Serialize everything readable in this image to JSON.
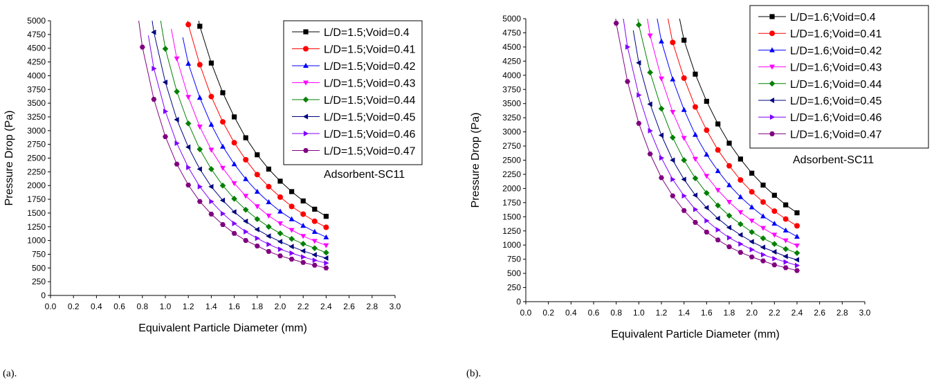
{
  "captions": {
    "a": "(a).",
    "b": "(b)."
  },
  "chart_data": [
    {
      "type": "line",
      "panel": "a",
      "xlabel": "Equivalent Particle Diameter (mm)",
      "ylabel": "Pressure Drop (Pa)",
      "annotation": "Adsorbent-SC11",
      "xlim": [
        0.0,
        3.0
      ],
      "ylim": [
        0,
        5000
      ],
      "xticks": [
        "0.0",
        "0.2",
        "0.4",
        "0.6",
        "0.8",
        "1.0",
        "1.2",
        "1.4",
        "1.6",
        "1.8",
        "2.0",
        "2.2",
        "2.4",
        "2.6",
        "2.8",
        "3.0"
      ],
      "yticks": [
        "0",
        "250",
        "500",
        "750",
        "1000",
        "1250",
        "1500",
        "1750",
        "2000",
        "2250",
        "2500",
        "2750",
        "3000",
        "3250",
        "3500",
        "3750",
        "4000",
        "4250",
        "4500",
        "4750",
        "5000"
      ],
      "grid": false,
      "legend_position": "top-right",
      "x": [
        0.8,
        0.9,
        1.0,
        1.1,
        1.2,
        1.3,
        1.4,
        1.5,
        1.6,
        1.7,
        1.8,
        1.9,
        2.0,
        2.1,
        2.2,
        2.3,
        2.4
      ],
      "series": [
        {
          "name": "L/D=1.5;Void=0.4",
          "marker": "square",
          "color": "#000000",
          "values": [
            null,
            null,
            null,
            null,
            null,
            4900,
            4230,
            3690,
            3250,
            2870,
            2560,
            2300,
            2080,
            1890,
            1720,
            1570,
            1440
          ]
        },
        {
          "name": "L/D=1.5;Void=0.41",
          "marker": "circle",
          "color": "#ff0000",
          "values": [
            null,
            null,
            null,
            null,
            4930,
            4200,
            3620,
            3160,
            2780,
            2470,
            2200,
            1980,
            1790,
            1620,
            1480,
            1350,
            1240
          ]
        },
        {
          "name": "L/D=1.5;Void=0.42",
          "marker": "triangle-up",
          "color": "#0000ff",
          "values": [
            null,
            null,
            null,
            null,
            4220,
            3600,
            3110,
            2710,
            2390,
            2120,
            1890,
            1700,
            1530,
            1390,
            1270,
            1160,
            1060
          ]
        },
        {
          "name": "L/D=1.5;Void=0.43",
          "marker": "triangle-down",
          "color": "#ff00ff",
          "values": [
            null,
            null,
            null,
            4310,
            3610,
            3070,
            2650,
            2320,
            2040,
            1810,
            1620,
            1450,
            1310,
            1190,
            1080,
            990,
            910
          ]
        },
        {
          "name": "L/D=1.5;Void=0.44",
          "marker": "diamond",
          "color": "#008000",
          "values": [
            null,
            null,
            4490,
            3710,
            3130,
            2660,
            2300,
            2000,
            1760,
            1560,
            1390,
            1250,
            1130,
            1030,
            940,
            860,
            780
          ]
        },
        {
          "name": "L/D=1.5;Void=0.45",
          "marker": "triangle-left",
          "color": "#000080",
          "values": [
            null,
            4790,
            3880,
            3200,
            2700,
            2300,
            1980,
            1730,
            1520,
            1350,
            1200,
            1080,
            980,
            890,
            810,
            740,
            680
          ]
        },
        {
          "name": "L/D=1.5;Void=0.46",
          "marker": "triangle-right",
          "color": "#8000ff",
          "values": [
            null,
            4130,
            3350,
            2770,
            2330,
            1980,
            1710,
            1490,
            1310,
            1160,
            1040,
            930,
            840,
            770,
            700,
            640,
            590
          ]
        },
        {
          "name": "L/D=1.5;Void=0.47",
          "marker": "hexagon",
          "color": "#800080",
          "values": [
            4520,
            3570,
            2890,
            2390,
            2010,
            1710,
            1480,
            1290,
            1130,
            1000,
            900,
            800,
            720,
            660,
            600,
            550,
            500
          ]
        }
      ]
    },
    {
      "type": "line",
      "panel": "b",
      "xlabel": "Equivalent Particle Diameter (mm)",
      "ylabel": "Pressure Drop (Pa)",
      "annotation": "Adsorbent-SC11",
      "xlim": [
        0.0,
        3.0
      ],
      "ylim": [
        0,
        5000
      ],
      "xticks": [
        "0.0",
        "0.2",
        "0.4",
        "0.6",
        "0.8",
        "1.0",
        "1.2",
        "1.4",
        "1.6",
        "1.8",
        "2.0",
        "2.2",
        "2.4",
        "2.6",
        "2.8",
        "3.0"
      ],
      "yticks": [
        "0",
        "250",
        "500",
        "750",
        "1000",
        "1250",
        "1500",
        "1750",
        "2000",
        "2250",
        "2500",
        "2750",
        "3000",
        "3250",
        "3500",
        "3750",
        "4000",
        "4250",
        "4500",
        "4750",
        "5000"
      ],
      "grid": false,
      "legend_position": "top-right",
      "x": [
        0.8,
        0.9,
        1.0,
        1.1,
        1.2,
        1.3,
        1.4,
        1.5,
        1.6,
        1.7,
        1.8,
        1.9,
        2.0,
        2.1,
        2.2,
        2.3,
        2.4
      ],
      "series": [
        {
          "name": "L/D=1.6;Void=0.4",
          "marker": "square",
          "color": "#000000",
          "values": [
            null,
            null,
            null,
            null,
            null,
            null,
            4620,
            4020,
            3540,
            3140,
            2800,
            2520,
            2270,
            2060,
            1880,
            1710,
            1570
          ]
        },
        {
          "name": "L/D=1.6;Void=0.41",
          "marker": "circle",
          "color": "#ff0000",
          "values": [
            null,
            null,
            null,
            null,
            null,
            4580,
            3950,
            3440,
            3030,
            2680,
            2400,
            2150,
            1940,
            1760,
            1600,
            1460,
            1340
          ]
        },
        {
          "name": "L/D=1.6;Void=0.42",
          "marker": "triangle-up",
          "color": "#0000ff",
          "values": [
            null,
            null,
            null,
            null,
            4600,
            3930,
            3390,
            2950,
            2600,
            2310,
            2060,
            1850,
            1670,
            1510,
            1380,
            1260,
            1150
          ]
        },
        {
          "name": "L/D=1.6;Void=0.43",
          "marker": "triangle-down",
          "color": "#ff00ff",
          "values": [
            null,
            null,
            null,
            4700,
            3940,
            3350,
            2890,
            2520,
            2220,
            1970,
            1760,
            1580,
            1430,
            1300,
            1180,
            1080,
            990
          ]
        },
        {
          "name": "L/D=1.6;Void=0.44",
          "marker": "diamond",
          "color": "#008000",
          "values": [
            null,
            null,
            4890,
            4050,
            3410,
            2900,
            2500,
            2180,
            1920,
            1700,
            1520,
            1370,
            1230,
            1120,
            1020,
            930,
            860
          ]
        },
        {
          "name": "L/D=1.6;Void=0.45",
          "marker": "triangle-left",
          "color": "#000080",
          "values": [
            null,
            null,
            4220,
            3490,
            2940,
            2500,
            2160,
            1880,
            1660,
            1470,
            1310,
            1180,
            1060,
            960,
            880,
            800,
            740
          ]
        },
        {
          "name": "L/D=1.6;Void=0.46",
          "marker": "triangle-right",
          "color": "#8000ff",
          "values": [
            null,
            4500,
            3650,
            3020,
            2540,
            2160,
            1870,
            1630,
            1430,
            1270,
            1130,
            1020,
            920,
            830,
            760,
            700,
            640
          ]
        },
        {
          "name": "L/D=1.6;Void=0.47",
          "marker": "hexagon",
          "color": "#800080",
          "values": [
            4920,
            3890,
            3150,
            2610,
            2190,
            1870,
            1610,
            1400,
            1230,
            1090,
            970,
            870,
            790,
            720,
            650,
            600,
            550
          ]
        }
      ]
    }
  ]
}
